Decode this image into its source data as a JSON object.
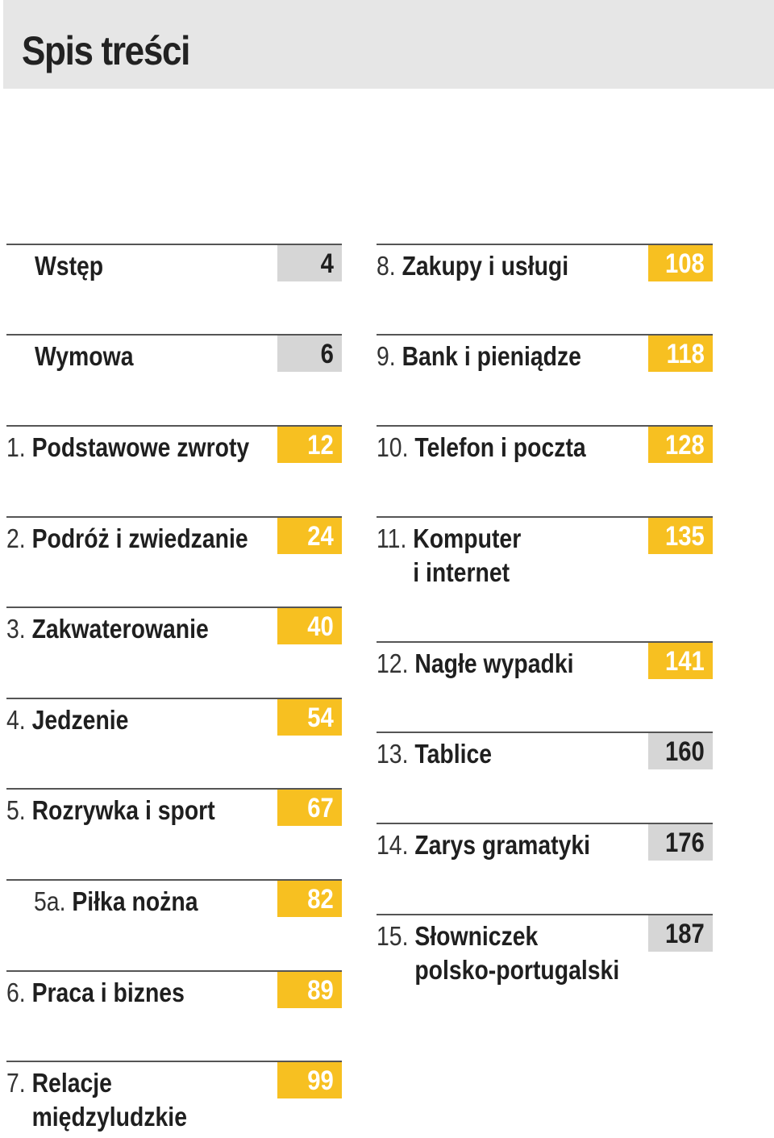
{
  "header": {
    "title": "Spis treści"
  },
  "colors": {
    "accent_yellow": "#f7c021",
    "page_gray": "#d6d6d6",
    "header_gray": "#e6e6e6"
  },
  "left_column": [
    {
      "num": "",
      "title": "Wstęp",
      "page": "4",
      "style": "gray"
    },
    {
      "num": "",
      "title": "Wymowa",
      "page": "6",
      "style": "gray"
    },
    {
      "num": "1.",
      "title": "Podstawowe zwroty",
      "page": "12",
      "style": "yellow"
    },
    {
      "num": "2.",
      "title": "Podróż i zwiedzanie",
      "page": "24",
      "style": "yellow"
    },
    {
      "num": "3.",
      "title": "Zakwaterowanie",
      "page": "40",
      "style": "yellow"
    },
    {
      "num": "4.",
      "title": "Jedzenie",
      "page": "54",
      "style": "yellow"
    },
    {
      "num": "5.",
      "title": "Rozrywka i sport",
      "page": "67",
      "style": "yellow"
    },
    {
      "num": "5a.",
      "title": "Piłka nożna",
      "page": "82",
      "style": "yellow"
    },
    {
      "num": "6.",
      "title": "Praca i biznes",
      "page": "89",
      "style": "yellow"
    },
    {
      "num": "7.",
      "title": "Relacje",
      "title2": "międzyludzkie",
      "page": "99",
      "style": "yellow"
    }
  ],
  "right_column": [
    {
      "num": "8.",
      "title": "Zakupy i usługi",
      "page": "108",
      "style": "yellow"
    },
    {
      "num": "9.",
      "title": "Bank i pieniądze",
      "page": "118",
      "style": "yellow"
    },
    {
      "num": "10.",
      "title": "Telefon i poczta",
      "page": "128",
      "style": "yellow"
    },
    {
      "num": "11.",
      "title": "Komputer",
      "title2": "i internet",
      "page": "135",
      "style": "yellow"
    },
    {
      "num": "12.",
      "title": "Nagłe wypadki",
      "page": "141",
      "style": "yellow"
    },
    {
      "num": "13.",
      "title": "Tablice",
      "page": "160",
      "style": "gray"
    },
    {
      "num": "14.",
      "title": "Zarys gramatyki",
      "page": "176",
      "style": "gray"
    },
    {
      "num": "15.",
      "title": "Słowniczek",
      "title2": "polsko-portugalski",
      "page": "187",
      "style": "gray"
    }
  ]
}
